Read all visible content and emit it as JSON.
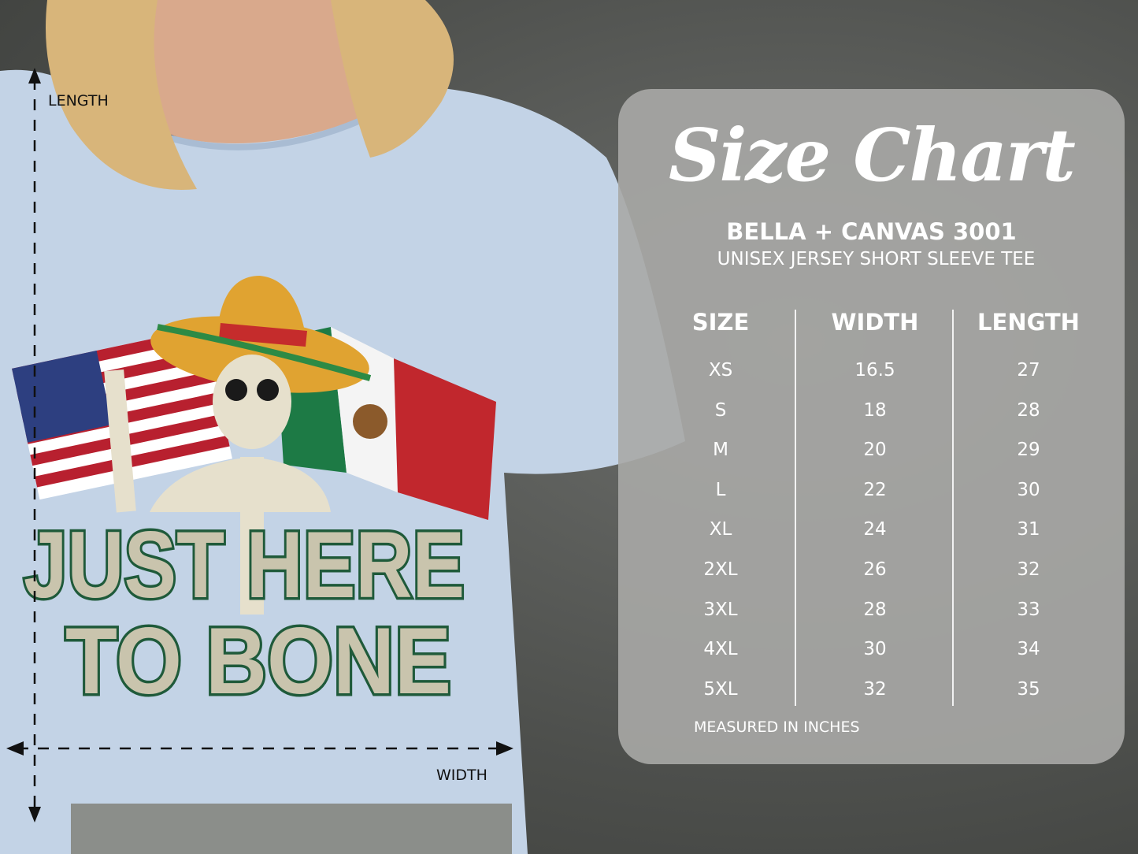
{
  "design": {
    "line1": "JUST HERE",
    "line2": "TO BONE"
  },
  "measure_labels": {
    "length": "LENGTH",
    "width": "WIDTH"
  },
  "size_chart": {
    "title": "Size Chart",
    "brand": "BELLA + CANVAS 3001",
    "product": "UNISEX JERSEY SHORT SLEEVE TEE",
    "columns": [
      "SIZE",
      "WIDTH",
      "LENGTH"
    ],
    "rows": [
      [
        "XS",
        "16.5",
        "27"
      ],
      [
        "S",
        "18",
        "28"
      ],
      [
        "M",
        "20",
        "29"
      ],
      [
        "L",
        "22",
        "30"
      ],
      [
        "XL",
        "24",
        "31"
      ],
      [
        "2XL",
        "26",
        "32"
      ],
      [
        "3XL",
        "28",
        "33"
      ],
      [
        "4XL",
        "30",
        "34"
      ],
      [
        "5XL",
        "32",
        "35"
      ]
    ],
    "note": "MEASURED IN INCHES"
  },
  "colors": {
    "shirt": "#c3d3e6",
    "panel": "#a8a9a6",
    "design_green": "#1f5a3a",
    "design_orange": "#d66a1d",
    "design_fill": "#c9c4ad"
  }
}
